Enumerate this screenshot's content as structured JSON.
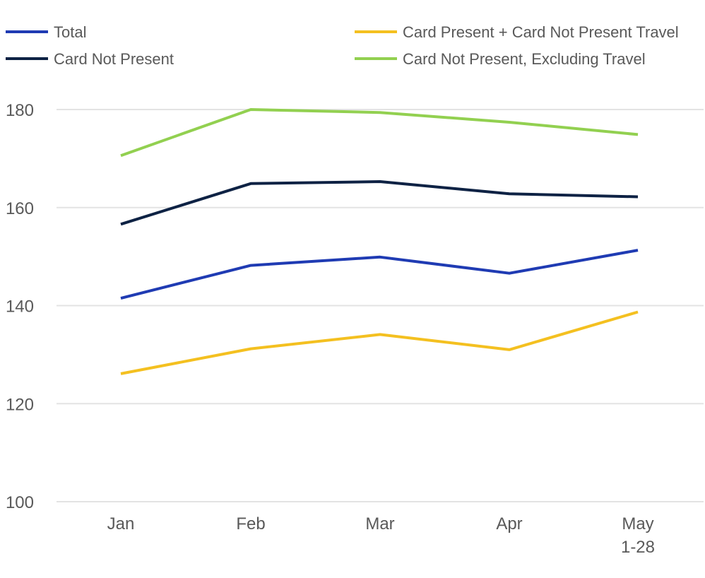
{
  "chart_data": {
    "type": "line",
    "title": "",
    "xlabel": "",
    "ylabel": "",
    "categories": [
      {
        "lines": [
          "Jan"
        ]
      },
      {
        "lines": [
          "Feb"
        ]
      },
      {
        "lines": [
          "Mar"
        ]
      },
      {
        "lines": [
          "Apr"
        ]
      },
      {
        "lines": [
          "May",
          "1-28"
        ]
      }
    ],
    "ylim": [
      100,
      180
    ],
    "yticks": [
      100,
      120,
      140,
      160,
      180
    ],
    "grid": true,
    "legend_position": "top",
    "series": [
      {
        "name": "Total",
        "color": "#1f3bb3",
        "values": [
          141.5,
          148.2,
          149.9,
          146.6,
          151.3
        ]
      },
      {
        "name": "Card Present + Card Not Present Travel",
        "color": "#f4c020",
        "values": [
          126.1,
          131.2,
          134.1,
          131.0,
          138.7
        ]
      },
      {
        "name": "Card Not Present",
        "color": "#0e2244",
        "values": [
          156.6,
          164.9,
          165.3,
          162.8,
          162.2
        ]
      },
      {
        "name": "Card Not Present, Excluding Travel",
        "color": "#92d050",
        "values": [
          170.6,
          180.0,
          179.4,
          177.4,
          174.9
        ]
      }
    ]
  }
}
